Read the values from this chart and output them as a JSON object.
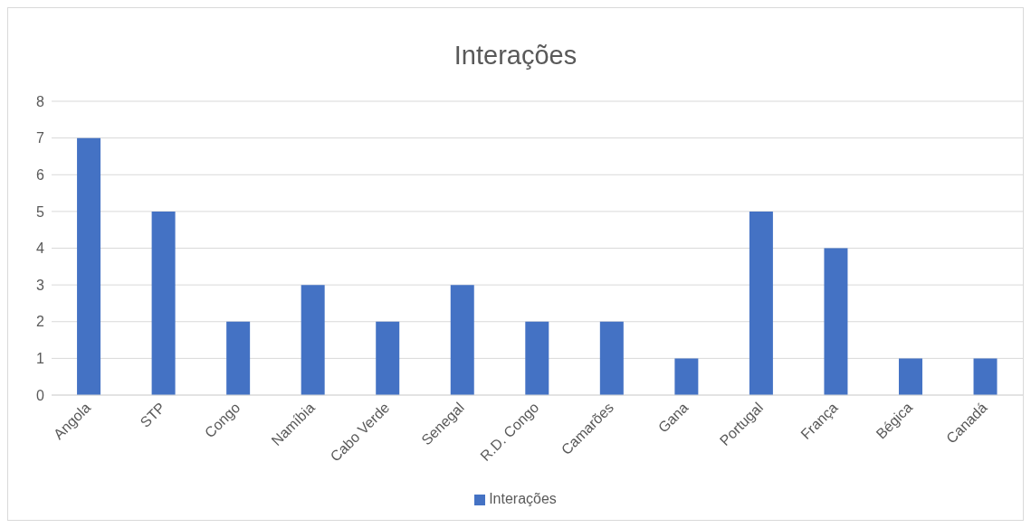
{
  "chart_data": {
    "type": "bar",
    "title": "Interações",
    "categories": [
      "Angola",
      "STP",
      "Congo",
      "Namíbia",
      "Cabo Verde",
      "Senegal",
      "R.D. Congo",
      "Camarões",
      "Gana",
      "Portugal",
      "França",
      "Bégica",
      "Canadá"
    ],
    "series": [
      {
        "name": "Interações",
        "color": "#4472c4",
        "values": [
          7,
          5,
          2,
          3,
          2,
          3,
          2,
          2,
          1,
          5,
          4,
          1,
          1
        ]
      }
    ],
    "ylim": [
      0,
      8
    ],
    "yticks": [
      0,
      1,
      2,
      3,
      4,
      5,
      6,
      7,
      8
    ],
    "grid": "y",
    "legend": "bottom"
  }
}
